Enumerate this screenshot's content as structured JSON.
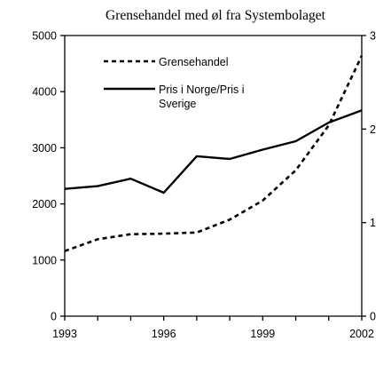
{
  "chart_data": {
    "type": "line",
    "title": "Grensehandel med øl fra Systembolaget",
    "xlabel": "",
    "ylabel": "",
    "x": [
      1993,
      1994,
      1995,
      1996,
      1997,
      1998,
      1999,
      2000,
      2001,
      2002
    ],
    "x_ticks": [
      "1993",
      "1996",
      "1999",
      "2002"
    ],
    "xlim": [
      1993,
      2002
    ],
    "y_left": {
      "lim": [
        0,
        5000
      ],
      "ticks": [
        "0",
        "1000",
        "2000",
        "3000",
        "4000",
        "5000"
      ]
    },
    "y_right": {
      "lim": [
        0,
        3
      ],
      "ticks": [
        "0",
        "1",
        "2",
        "3"
      ]
    },
    "series": [
      {
        "name": "Grensehandel",
        "axis": "left",
        "style": "dashed",
        "values": [
          1160,
          1370,
          1460,
          1470,
          1490,
          1720,
          2060,
          2600,
          3400,
          4640
        ]
      },
      {
        "name": "Pris i Norge/Pris i Sverige",
        "axis": "right",
        "style": "solid",
        "values": [
          1.36,
          1.39,
          1.47,
          1.32,
          1.71,
          1.68,
          1.78,
          1.87,
          2.07,
          2.2
        ]
      }
    ],
    "legend": {
      "position": "top-left",
      "entries": [
        {
          "lines": [
            "Grensehandel"
          ]
        },
        {
          "lines": [
            "Pris i Norge/Pris i",
            "Sverige"
          ]
        }
      ]
    },
    "grid": false,
    "colors": {
      "line": "#000000",
      "background": "#ffffff"
    }
  }
}
